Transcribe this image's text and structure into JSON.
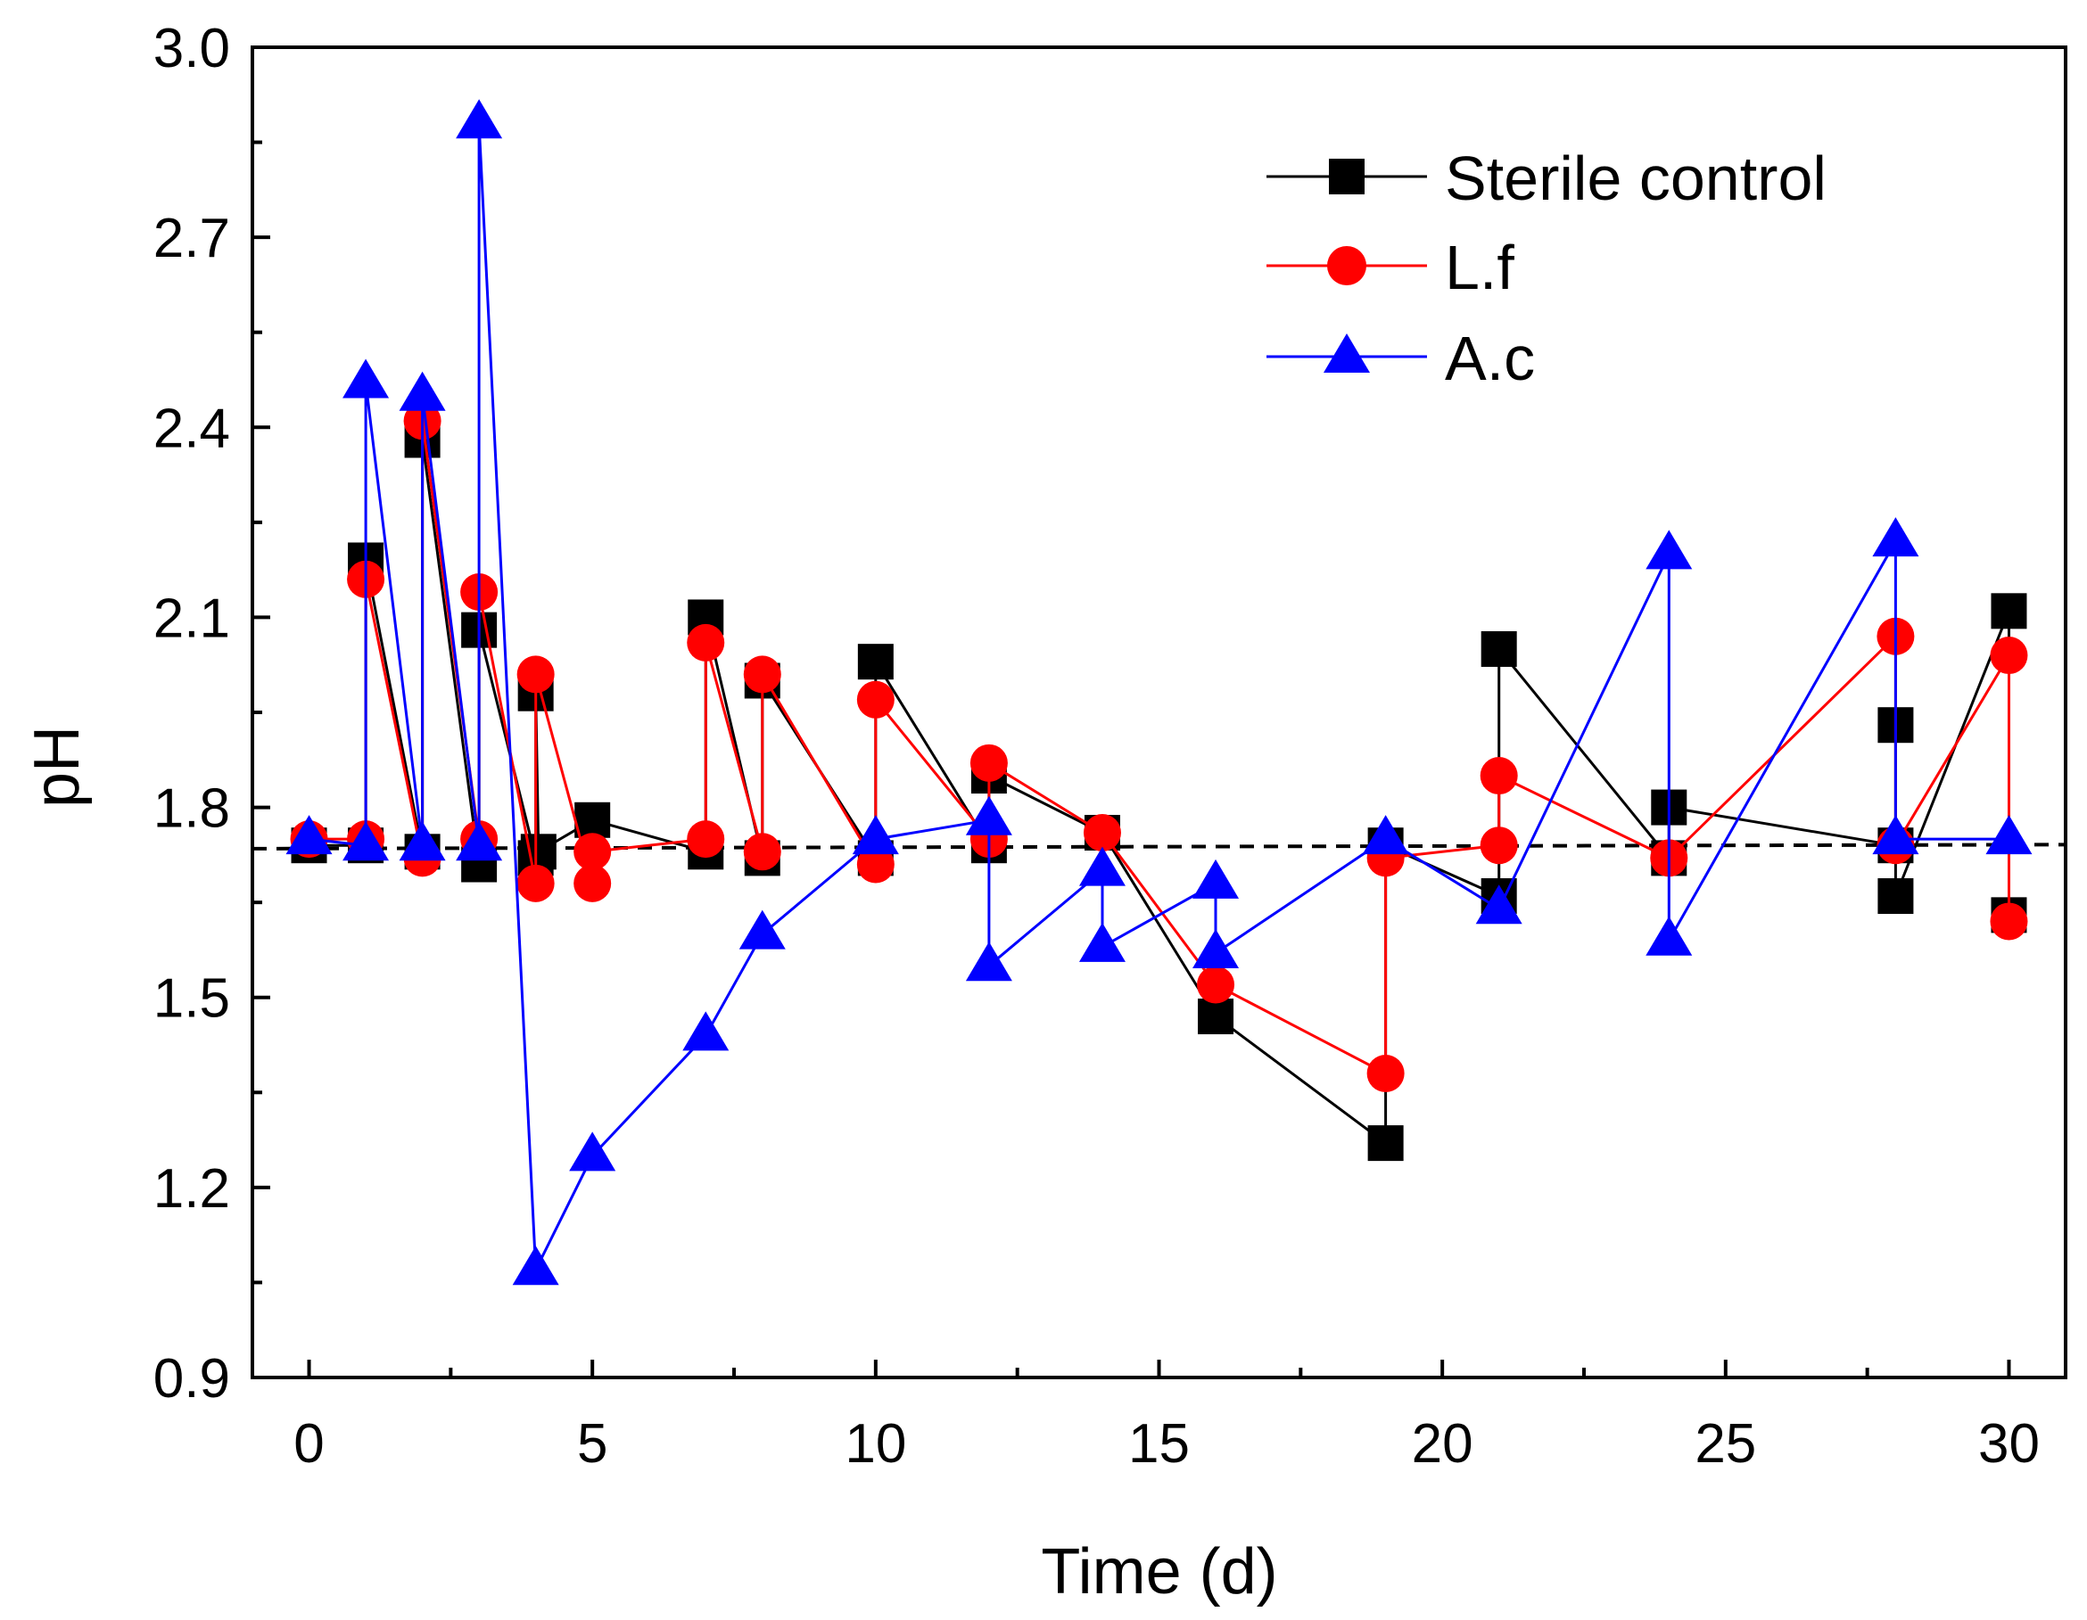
{
  "chart_data": {
    "type": "line",
    "title": "",
    "xlabel": "Time (d)",
    "ylabel": "pH",
    "xlim": [
      -1,
      31
    ],
    "ylim": [
      0.9,
      3.0
    ],
    "xticks": [
      0,
      5,
      10,
      15,
      20,
      25,
      30
    ],
    "xtick_labels": [
      "0",
      "5",
      "10",
      "15",
      "20",
      "25",
      "30"
    ],
    "yticks": [
      0.9,
      1.2,
      1.5,
      1.8,
      2.1,
      2.4,
      2.7,
      3.0
    ],
    "ytick_labels": [
      "0.9",
      "1.2",
      "1.5",
      "1.8",
      "2.1",
      "2.4",
      "2.7",
      "3.0"
    ],
    "grid": false,
    "legend_position": "top-right",
    "reference_line": {
      "y": 1.735,
      "slope_per_day": 0.0002,
      "style": "dashed",
      "color": "#000000"
    },
    "series": [
      {
        "name": "Sterile control",
        "color": "#000000",
        "marker": "square",
        "points": [
          [
            0,
            1.74
          ],
          [
            1,
            1.74
          ],
          [
            1,
            2.19
          ],
          [
            2,
            1.73
          ],
          [
            2,
            2.38
          ],
          [
            3,
            1.71
          ],
          [
            3,
            2.08
          ],
          [
            4,
            1.72
          ],
          [
            4,
            1.98
          ],
          [
            4.05,
            1.73
          ],
          [
            5,
            1.78
          ],
          [
            7,
            1.73
          ],
          [
            7,
            2.1
          ],
          [
            8,
            1.72
          ],
          [
            8,
            2.0
          ],
          [
            10,
            1.72
          ],
          [
            10,
            2.03
          ],
          [
            12,
            1.74
          ],
          [
            12,
            1.85
          ],
          [
            14,
            1.76
          ],
          [
            16,
            1.47
          ],
          [
            19,
            1.27
          ],
          [
            19,
            1.74
          ],
          [
            21,
            1.66
          ],
          [
            21,
            2.05
          ],
          [
            24,
            1.72
          ],
          [
            24,
            1.8
          ],
          [
            28,
            1.74
          ],
          [
            28,
            1.93
          ],
          [
            28,
            1.66
          ],
          [
            30,
            2.11
          ],
          [
            30,
            1.63
          ]
        ]
      },
      {
        "name": "L.f",
        "color": "#ff0000",
        "marker": "circle",
        "points": [
          [
            0,
            1.75
          ],
          [
            1,
            1.75
          ],
          [
            1,
            2.16
          ],
          [
            2,
            1.72
          ],
          [
            2,
            2.41
          ],
          [
            3,
            1.75
          ],
          [
            3,
            2.14
          ],
          [
            4,
            1.68
          ],
          [
            4,
            2.01
          ],
          [
            5,
            1.68
          ],
          [
            5,
            1.73
          ],
          [
            7,
            1.75
          ],
          [
            7,
            2.06
          ],
          [
            8,
            1.73
          ],
          [
            8,
            2.01
          ],
          [
            10,
            1.71
          ],
          [
            10,
            1.97
          ],
          [
            12,
            1.75
          ],
          [
            12,
            1.87
          ],
          [
            14,
            1.76
          ],
          [
            16,
            1.52
          ],
          [
            19,
            1.38
          ],
          [
            19,
            1.72
          ],
          [
            21,
            1.74
          ],
          [
            21,
            1.85
          ],
          [
            24,
            1.72
          ],
          [
            28,
            2.07
          ],
          [
            28,
            1.74
          ],
          [
            30,
            2.04
          ],
          [
            30,
            1.62
          ]
        ]
      },
      {
        "name": "A.c",
        "color": "#0000ff",
        "marker": "triangle",
        "points": [
          [
            0,
            1.75
          ],
          [
            1,
            1.74
          ],
          [
            1,
            2.47
          ],
          [
            2,
            1.74
          ],
          [
            2,
            2.45
          ],
          [
            3,
            1.74
          ],
          [
            3,
            2.88
          ],
          [
            4,
            1.07
          ],
          [
            5,
            1.25
          ],
          [
            7,
            1.44
          ],
          [
            8,
            1.6
          ],
          [
            10,
            1.75
          ],
          [
            12,
            1.78
          ],
          [
            12,
            1.55
          ],
          [
            14,
            1.7
          ],
          [
            14,
            1.58
          ],
          [
            16,
            1.68
          ],
          [
            16,
            1.57
          ],
          [
            19,
            1.75
          ],
          [
            21,
            1.64
          ],
          [
            24,
            2.2
          ],
          [
            24,
            1.59
          ],
          [
            28,
            2.22
          ],
          [
            28,
            1.75
          ],
          [
            30,
            1.75
          ]
        ]
      }
    ]
  }
}
